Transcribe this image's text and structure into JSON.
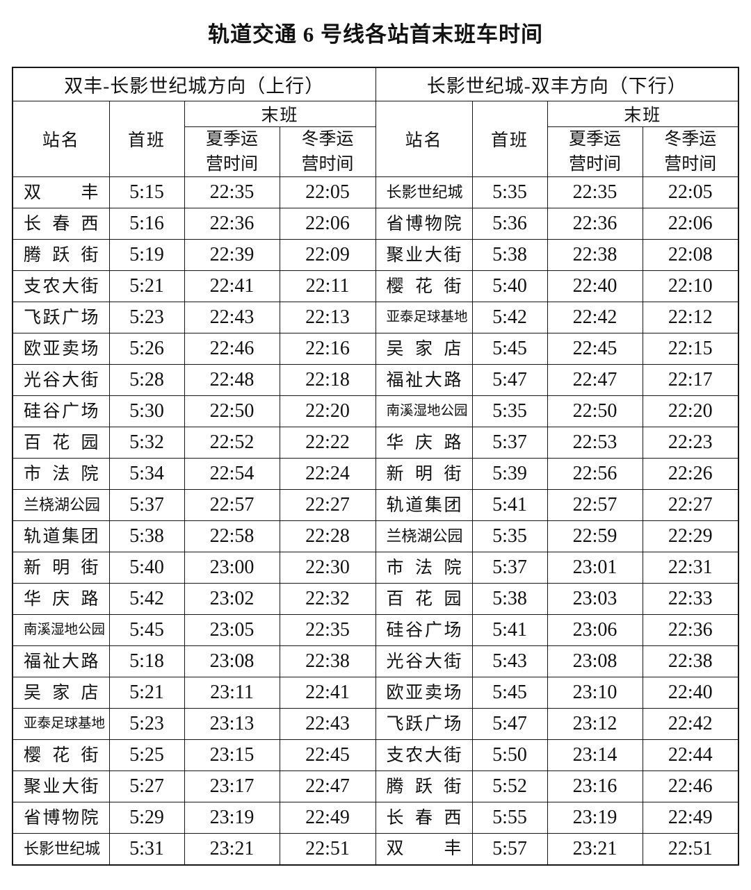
{
  "page": {
    "title": "轨道交通 6 号线各站首末班车时间"
  },
  "colors": {
    "text": "#111111",
    "border": "#161616",
    "background": "#ffffff"
  },
  "table": {
    "columns": {
      "station": "站名",
      "first": "首班",
      "last": "末班",
      "summer": "夏季运营时间",
      "winter": "冬季运营时间"
    },
    "sections": [
      {
        "direction": "双丰-长影世纪城方向（上行）",
        "rows": [
          [
            "双丰",
            "5:15",
            "22:35",
            "22:05"
          ],
          [
            "长春西",
            "5:16",
            "22:36",
            "22:06"
          ],
          [
            "腾跃街",
            "5:19",
            "22:39",
            "22:09"
          ],
          [
            "支农大街",
            "5:21",
            "22:41",
            "22:11"
          ],
          [
            "飞跃广场",
            "5:23",
            "22:43",
            "22:13"
          ],
          [
            "欧亚卖场",
            "5:26",
            "22:46",
            "22:16"
          ],
          [
            "光谷大街",
            "5:28",
            "22:48",
            "22:18"
          ],
          [
            "硅谷广场",
            "5:30",
            "22:50",
            "22:20"
          ],
          [
            "百花园",
            "5:32",
            "22:52",
            "22:22"
          ],
          [
            "市法院",
            "5:34",
            "22:54",
            "22:24"
          ],
          [
            "兰桡湖公园",
            "5:37",
            "22:57",
            "22:27"
          ],
          [
            "轨道集团",
            "5:38",
            "22:58",
            "22:28"
          ],
          [
            "新明街",
            "5:40",
            "23:00",
            "22:30"
          ],
          [
            "华庆路",
            "5:42",
            "23:02",
            "22:32"
          ],
          [
            "南溪湿地公园",
            "5:45",
            "23:05",
            "22:35"
          ],
          [
            "福祉大路",
            "5:18",
            "23:08",
            "22:38"
          ],
          [
            "吴家店",
            "5:21",
            "23:11",
            "22:41"
          ],
          [
            "亚泰足球基地",
            "5:23",
            "23:13",
            "22:43"
          ],
          [
            "樱花街",
            "5:25",
            "23:15",
            "22:45"
          ],
          [
            "聚业大街",
            "5:27",
            "23:17",
            "22:47"
          ],
          [
            "省博物院",
            "5:29",
            "23:19",
            "22:49"
          ],
          [
            "长影世纪城",
            "5:31",
            "23:21",
            "22:51"
          ]
        ]
      },
      {
        "direction": "长影世纪城-双丰方向（下行）",
        "rows": [
          [
            "长影世纪城",
            "5:35",
            "22:35",
            "22:05"
          ],
          [
            "省博物院",
            "5:36",
            "22:36",
            "22:06"
          ],
          [
            "聚业大街",
            "5:38",
            "22:38",
            "22:08"
          ],
          [
            "樱花街",
            "5:40",
            "22:40",
            "22:10"
          ],
          [
            "亚泰足球基地",
            "5:42",
            "22:42",
            "22:12"
          ],
          [
            "吴家店",
            "5:45",
            "22:45",
            "22:15"
          ],
          [
            "福祉大路",
            "5:47",
            "22:47",
            "22:17"
          ],
          [
            "南溪湿地公园",
            "5:35",
            "22:50",
            "22:20"
          ],
          [
            "华庆路",
            "5:37",
            "22:53",
            "22:23"
          ],
          [
            "新明街",
            "5:39",
            "22:56",
            "22:26"
          ],
          [
            "轨道集团",
            "5:41",
            "22:57",
            "22:27"
          ],
          [
            "兰桡湖公园",
            "5:35",
            "22:59",
            "22:29"
          ],
          [
            "市法院",
            "5:37",
            "23:01",
            "22:31"
          ],
          [
            "百花园",
            "5:38",
            "23:03",
            "22:33"
          ],
          [
            "硅谷广场",
            "5:41",
            "23:06",
            "22:36"
          ],
          [
            "光谷大街",
            "5:43",
            "23:08",
            "22:38"
          ],
          [
            "欧亚卖场",
            "5:45",
            "23:10",
            "22:40"
          ],
          [
            "飞跃广场",
            "5:47",
            "23:12",
            "22:42"
          ],
          [
            "支农大街",
            "5:50",
            "23:14",
            "22:44"
          ],
          [
            "腾跃街",
            "5:52",
            "23:16",
            "22:46"
          ],
          [
            "长春西",
            "5:55",
            "23:19",
            "22:49"
          ],
          [
            "双丰",
            "5:57",
            "23:21",
            "22:51"
          ]
        ]
      }
    ]
  }
}
